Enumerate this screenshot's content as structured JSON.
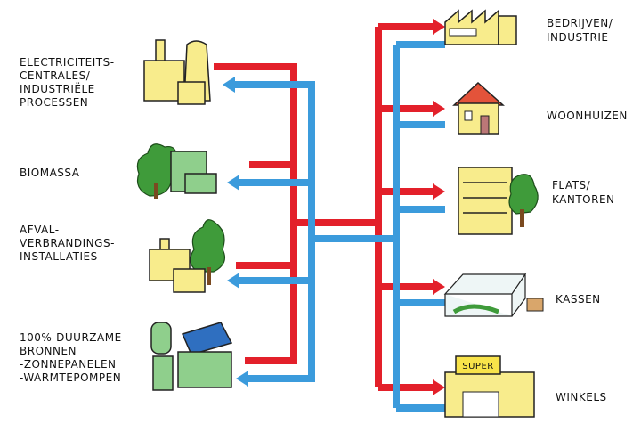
{
  "sources": [
    {
      "lines": [
        "ELECTRICITEITS-",
        "CENTRALES/",
        "INDUSTRIËLE",
        "PROCESSEN"
      ]
    },
    {
      "lines": [
        "BIOMASSA"
      ]
    },
    {
      "lines": [
        "AFVAL-",
        "VERBRANDINGS-",
        "INSTALLATIES"
      ]
    },
    {
      "lines": [
        "100%-DUURZAME",
        "BRONNEN",
        "-ZONNEPANELEN",
        "-WARMTEPOMPEN"
      ]
    }
  ],
  "consumers": [
    {
      "lines": [
        "BEDRIJVEN/",
        "INDUSTRIE"
      ]
    },
    {
      "lines": [
        "WOONHUIZEN"
      ]
    },
    {
      "lines": [
        "FLATS/",
        "KANTOREN"
      ]
    },
    {
      "lines": [
        "KASSEN"
      ]
    },
    {
      "lines": [
        "WINKELS"
      ]
    }
  ],
  "shop_sign": "SUPER"
}
